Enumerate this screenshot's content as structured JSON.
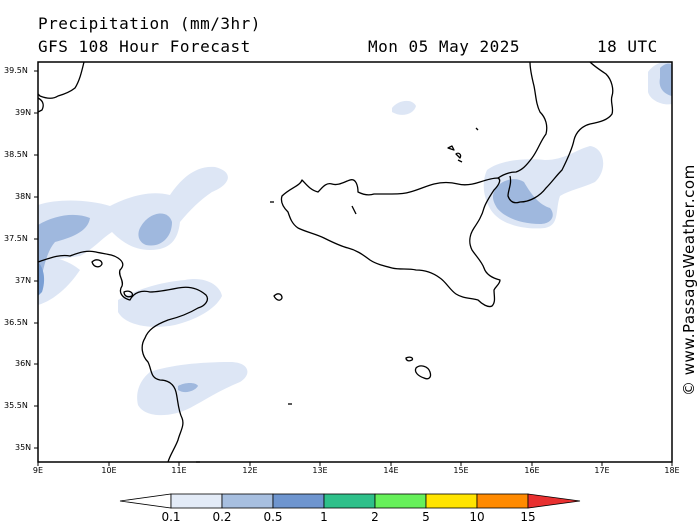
{
  "header": {
    "title": "Precipitation (mm/3hr)",
    "subtitle": "GFS 108 Hour Forecast",
    "date": "Mon 05 May 2025",
    "time": "18 UTC"
  },
  "axes": {
    "lat_labels": [
      "39.5N",
      "39N",
      "38.5N",
      "38N",
      "37.5N",
      "37N",
      "36.5N",
      "36N",
      "35.5N",
      "35N"
    ],
    "lon_labels": [
      "9E",
      "10E",
      "11E",
      "12E",
      "13E",
      "14E",
      "15E",
      "16E",
      "17E",
      "18E"
    ]
  },
  "legend": {
    "thresholds": [
      "0.1",
      "0.2",
      "0.5",
      "1",
      "2",
      "5",
      "10",
      "15"
    ],
    "colors": [
      "#ffffff",
      "#e3ebf7",
      "#a7bfe0",
      "#6e95cf",
      "#2ec08a",
      "#66f05a",
      "#ffe400",
      "#ff8a00",
      "#e83030"
    ]
  },
  "credit": "© www.PassageWeather.com",
  "map": {
    "precip_colors": {
      "light": "#dde6f5",
      "medium": "#9fb8de"
    }
  }
}
